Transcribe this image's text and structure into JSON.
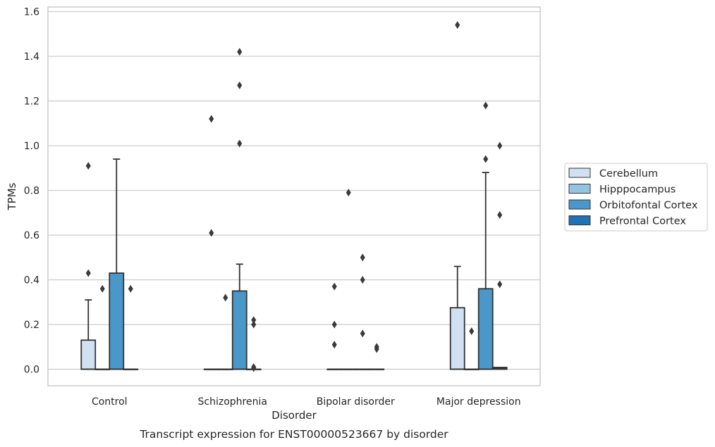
{
  "caption": "Transcript expression for ENST00000523667 by disorder",
  "chart_data": {
    "type": "box",
    "xlabel": "Disorder",
    "ylabel": "TPMs",
    "ylim": [
      -0.075,
      1.62
    ],
    "yticks": [
      "0.0",
      "0.2",
      "0.4",
      "0.6",
      "0.8",
      "1.0",
      "1.2",
      "1.4",
      "1.6"
    ],
    "grid": true,
    "legend_position": "right",
    "categories": [
      "Control",
      "Schizophrenia",
      "Bipolar disorder",
      "Major depression"
    ],
    "series": [
      {
        "name": "Cerebellum",
        "color": "#d0e1f2",
        "boxes": [
          {
            "q1": 0.0,
            "median": 0.0,
            "q3": 0.13,
            "whisker_low": 0.0,
            "whisker_high": 0.31,
            "outliers": [
              0.91,
              0.43
            ]
          },
          {
            "q1": 0.0,
            "median": 0.0,
            "q3": 0.0,
            "whisker_low": 0.0,
            "whisker_high": 0.0,
            "outliers": [
              1.12,
              0.61
            ]
          },
          {
            "q1": 0.0,
            "median": 0.0,
            "q3": 0.0,
            "whisker_low": 0.0,
            "whisker_high": 0.0,
            "outliers": [
              0.37,
              0.2,
              0.11
            ]
          },
          {
            "q1": 0.0,
            "median": 0.0,
            "q3": 0.275,
            "whisker_low": 0.0,
            "whisker_high": 0.46,
            "outliers": [
              1.54
            ]
          }
        ]
      },
      {
        "name": "Hipppocampus",
        "color": "#94c4df",
        "boxes": [
          {
            "q1": 0.0,
            "median": 0.0,
            "q3": 0.0,
            "whisker_low": 0.0,
            "whisker_high": 0.0,
            "outliers": [
              0.36
            ]
          },
          {
            "q1": 0.0,
            "median": 0.0,
            "q3": 0.0,
            "whisker_low": 0.0,
            "whisker_high": 0.0,
            "outliers": [
              0.32
            ]
          },
          {
            "q1": 0.0,
            "median": 0.0,
            "q3": 0.0,
            "whisker_low": 0.0,
            "whisker_high": 0.0,
            "outliers": [
              0.79
            ]
          },
          {
            "q1": 0.0,
            "median": 0.0,
            "q3": 0.0,
            "whisker_low": 0.0,
            "whisker_high": 0.0,
            "outliers": [
              0.17
            ]
          }
        ]
      },
      {
        "name": "Orbitofontal Cortex",
        "color": "#4a98c9",
        "boxes": [
          {
            "q1": 0.0,
            "median": 0.0,
            "q3": 0.43,
            "whisker_low": 0.0,
            "whisker_high": 0.94,
            "outliers": []
          },
          {
            "q1": 0.0,
            "median": 0.0,
            "q3": 0.35,
            "whisker_low": 0.0,
            "whisker_high": 0.47,
            "outliers": [
              1.42,
              1.27,
              1.01
            ]
          },
          {
            "q1": 0.0,
            "median": 0.0,
            "q3": 0.0,
            "whisker_low": 0.0,
            "whisker_high": 0.0,
            "outliers": [
              0.5,
              0.4,
              0.16
            ]
          },
          {
            "q1": 0.0,
            "median": 0.0,
            "q3": 0.36,
            "whisker_low": 0.0,
            "whisker_high": 0.88,
            "outliers": [
              1.18,
              0.94
            ]
          }
        ]
      },
      {
        "name": "Prefrontal Cortex",
        "color": "#2171b5",
        "boxes": [
          {
            "q1": 0.0,
            "median": 0.0,
            "q3": 0.0,
            "whisker_low": 0.0,
            "whisker_high": 0.0,
            "outliers": [
              0.36
            ]
          },
          {
            "q1": 0.0,
            "median": 0.0,
            "q3": 0.0,
            "whisker_low": 0.0,
            "whisker_high": 0.0,
            "outliers": [
              0.22,
              0.2,
              0.01,
              0.005
            ]
          },
          {
            "q1": 0.0,
            "median": 0.0,
            "q3": 0.0,
            "whisker_low": 0.0,
            "whisker_high": 0.0,
            "outliers": [
              0.1,
              0.09
            ]
          },
          {
            "q1": 0.0,
            "median": 0.005,
            "q3": 0.008,
            "whisker_low": 0.0,
            "whisker_high": 0.008,
            "outliers": [
              1.0,
              0.69,
              0.38
            ]
          }
        ]
      }
    ]
  }
}
